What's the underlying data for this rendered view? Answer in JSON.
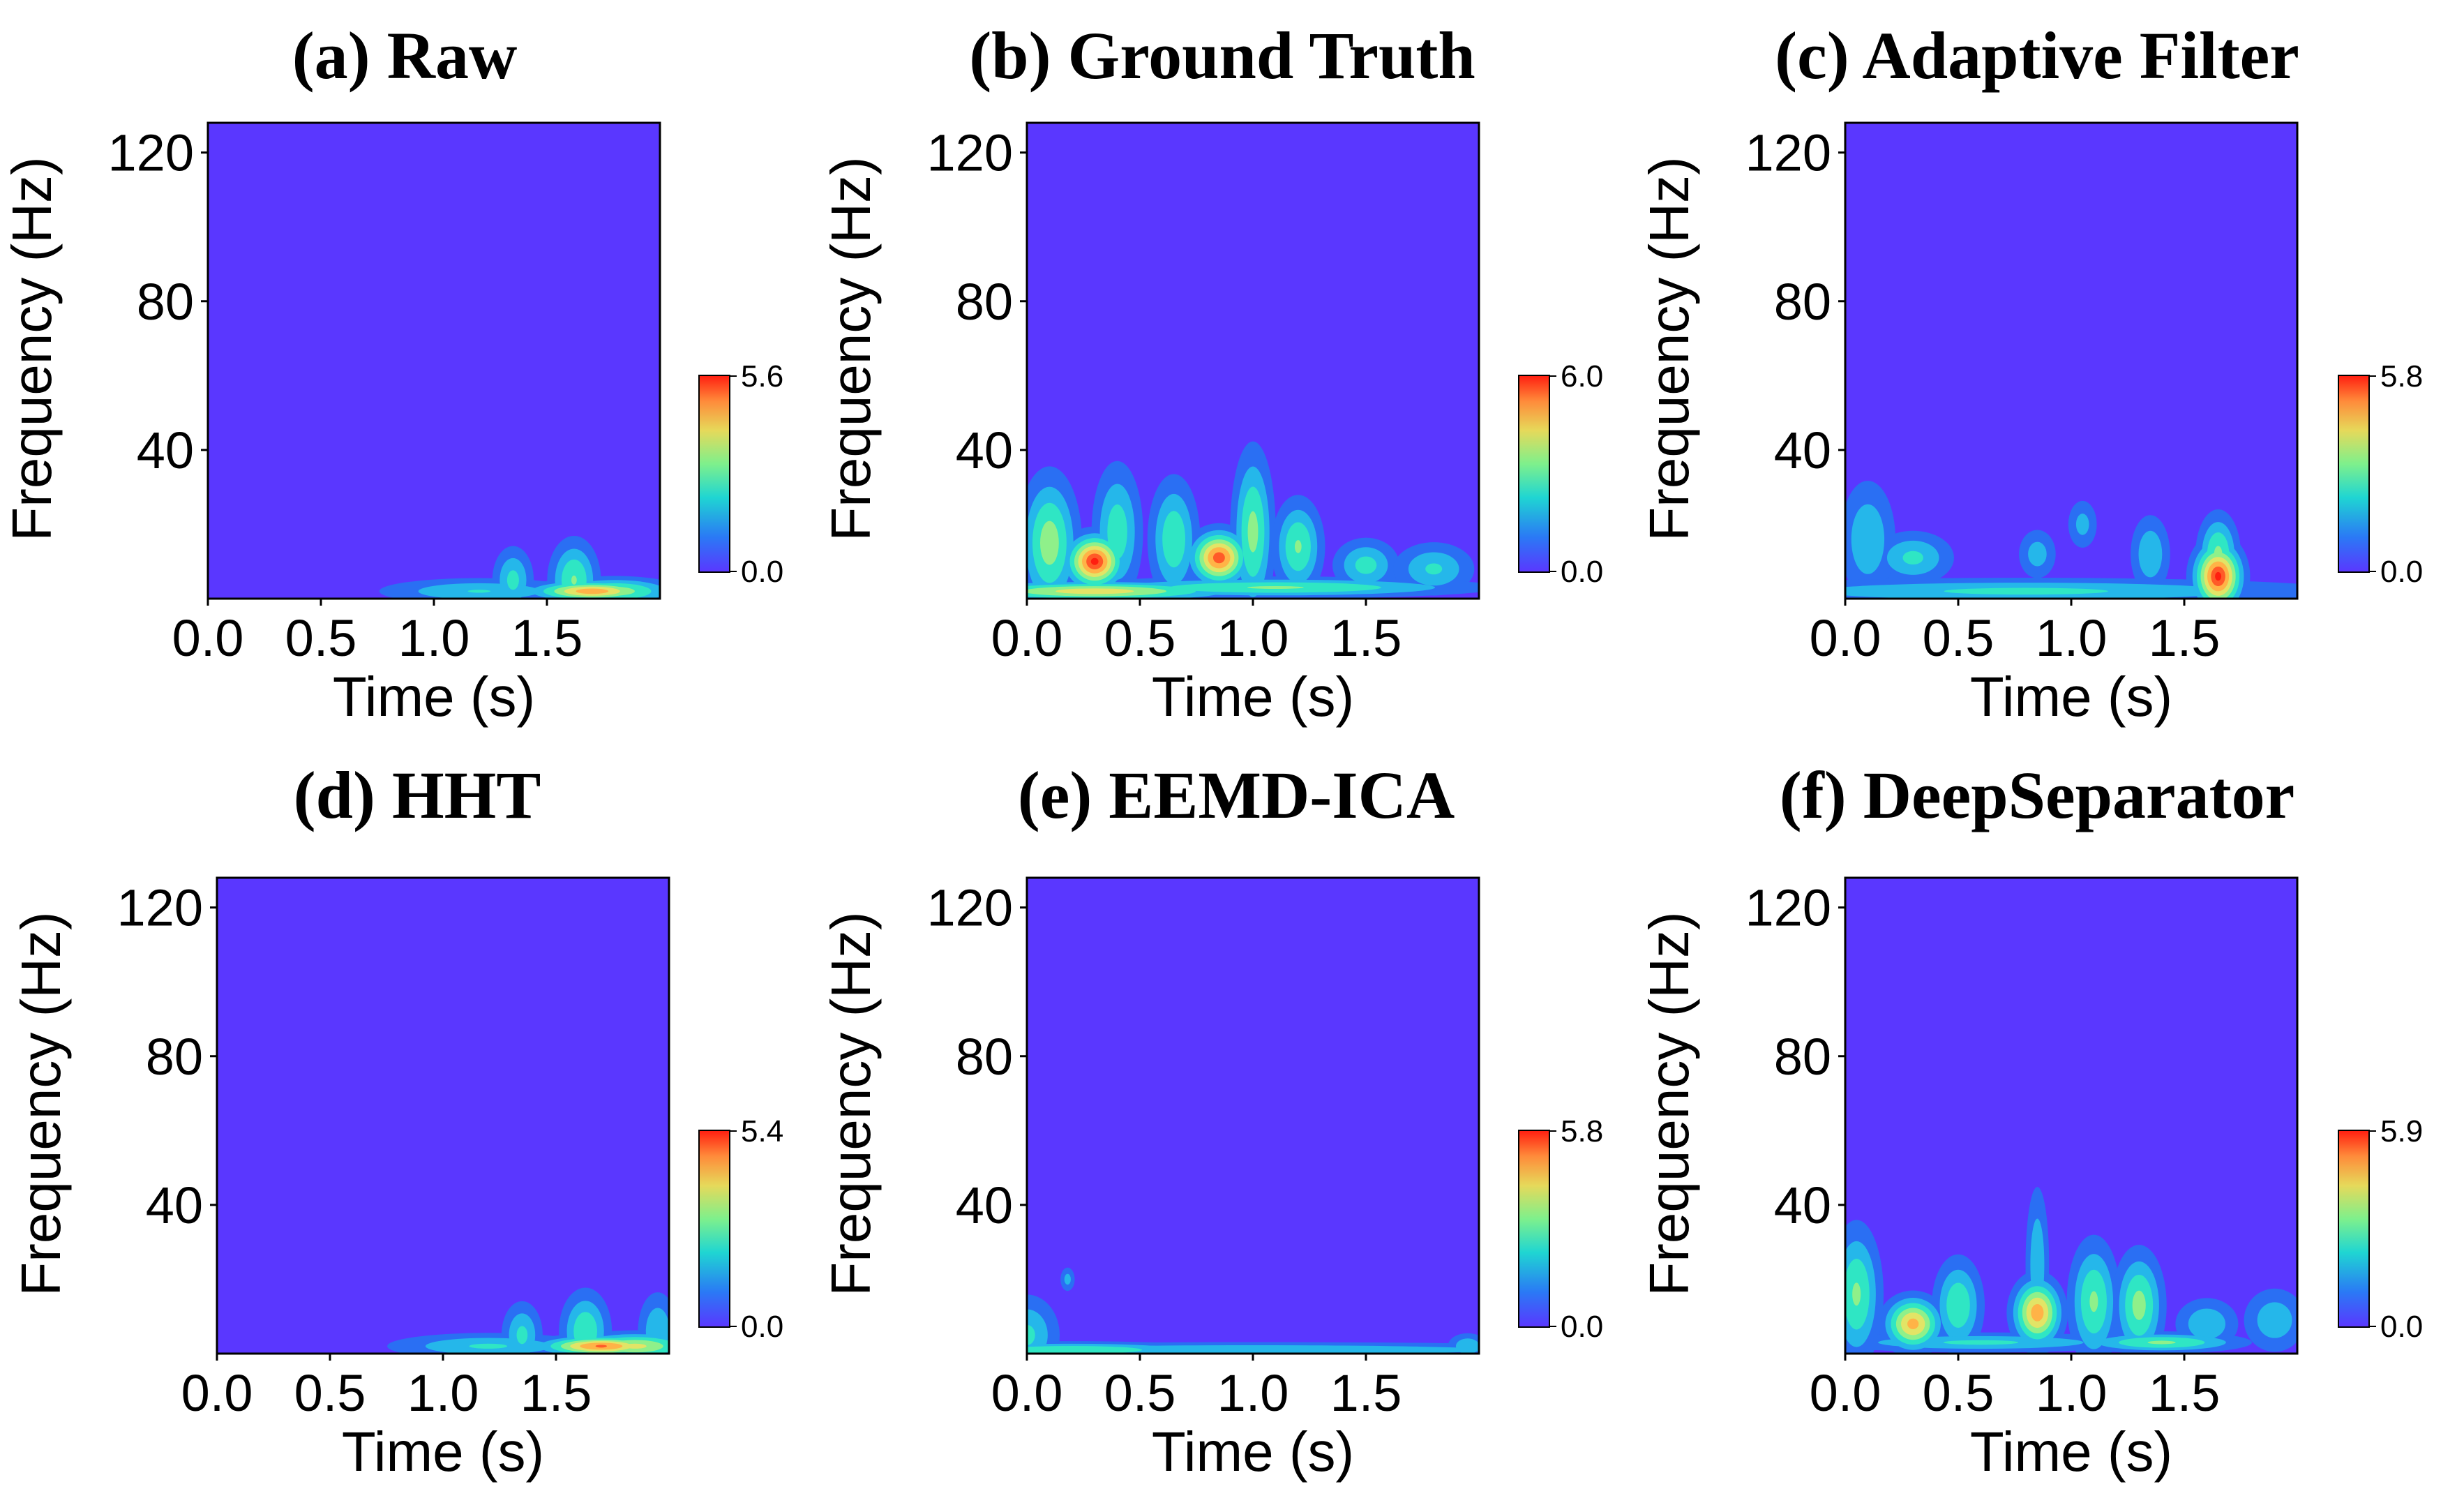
{
  "figure": {
    "description_label": "Time-frequency spectrograms comparison"
  },
  "chart_data": [
    {
      "type": "heatmap",
      "title": "(a) Raw",
      "xlabel": "Time (s)",
      "ylabel": "Frequency (Hz)",
      "xlim": [
        0.0,
        2.0
      ],
      "ylim": [
        0,
        128
      ],
      "xticks": [
        "0.0",
        "0.5",
        "1.0",
        "1.5"
      ],
      "yticks": [
        "120",
        "80",
        "40"
      ],
      "colorbar": {
        "min": 0.0,
        "max": 5.6,
        "min_label": "0.0",
        "max_label": "5.6"
      },
      "hotspots": [
        {
          "t": 1.35,
          "f": 5,
          "value": 1.8,
          "dt": 0.05,
          "df": 5
        },
        {
          "t": 1.62,
          "f": 5,
          "value": 2.4,
          "dt": 0.06,
          "df": 6
        },
        {
          "t": 1.7,
          "f": 2,
          "value": 4.4,
          "dt": 0.15,
          "df": 1.5
        },
        {
          "t": 1.8,
          "f": 2,
          "value": 2.8,
          "dt": 0.15,
          "df": 2
        },
        {
          "t": 1.2,
          "f": 2,
          "value": 1.6,
          "dt": 0.25,
          "df": 2
        }
      ]
    },
    {
      "type": "heatmap",
      "title": "(b) Ground Truth",
      "xlabel": "Time (s)",
      "ylabel": "Frequency (Hz)",
      "xlim": [
        0.0,
        2.0
      ],
      "ylim": [
        0,
        128
      ],
      "xticks": [
        "0.0",
        "0.5",
        "1.0",
        "1.5"
      ],
      "yticks": [
        "120",
        "80",
        "40"
      ],
      "colorbar": {
        "min": 0.0,
        "max": 6.0,
        "min_label": "0.0",
        "max_label": "6.0"
      },
      "hotspots": [
        {
          "t": 0.3,
          "f": 10,
          "value": 5.8,
          "dt": 0.07,
          "df": 4
        },
        {
          "t": 0.85,
          "f": 11,
          "value": 5.4,
          "dt": 0.07,
          "df": 4
        },
        {
          "t": 0.1,
          "f": 15,
          "value": 3.0,
          "dt": 0.07,
          "df": 10
        },
        {
          "t": 0.4,
          "f": 18,
          "value": 2.2,
          "dt": 0.06,
          "df": 10
        },
        {
          "t": 0.65,
          "f": 16,
          "value": 2.4,
          "dt": 0.06,
          "df": 9
        },
        {
          "t": 1.0,
          "f": 18,
          "value": 2.8,
          "dt": 0.05,
          "df": 12
        },
        {
          "t": 1.2,
          "f": 14,
          "value": 2.6,
          "dt": 0.06,
          "df": 7
        },
        {
          "t": 1.5,
          "f": 9,
          "value": 2.0,
          "dt": 0.08,
          "df": 4
        },
        {
          "t": 1.8,
          "f": 8,
          "value": 1.8,
          "dt": 0.1,
          "df": 4
        },
        {
          "t": 0.3,
          "f": 2,
          "value": 3.8,
          "dt": 0.35,
          "df": 1.5
        },
        {
          "t": 1.1,
          "f": 3,
          "value": 2.6,
          "dt": 0.5,
          "df": 1.5
        }
      ]
    },
    {
      "type": "heatmap",
      "title": "(c) Adaptive Filter",
      "xlabel": "Time (s)",
      "ylabel": "Frequency (Hz)",
      "xlim": [
        0.0,
        2.0
      ],
      "ylim": [
        0,
        128
      ],
      "xticks": [
        "0.0",
        "0.5",
        "1.0",
        "1.5"
      ],
      "yticks": [
        "120",
        "80",
        "40"
      ],
      "colorbar": {
        "min": 0.0,
        "max": 5.8,
        "min_label": "0.0",
        "max_label": "5.8"
      },
      "hotspots": [
        {
          "t": 1.65,
          "f": 6,
          "value": 5.6,
          "dt": 0.06,
          "df": 5
        },
        {
          "t": 1.65,
          "f": 12,
          "value": 2.6,
          "dt": 0.05,
          "df": 6
        },
        {
          "t": 0.3,
          "f": 11,
          "value": 1.8,
          "dt": 0.1,
          "df": 4
        },
        {
          "t": 0.1,
          "f": 16,
          "value": 1.6,
          "dt": 0.07,
          "df": 9
        },
        {
          "t": 0.85,
          "f": 12,
          "value": 1.3,
          "dt": 0.05,
          "df": 4
        },
        {
          "t": 1.05,
          "f": 20,
          "value": 1.2,
          "dt": 0.04,
          "df": 4
        },
        {
          "t": 1.35,
          "f": 12,
          "value": 1.6,
          "dt": 0.05,
          "df": 6
        },
        {
          "t": 0.8,
          "f": 2,
          "value": 1.8,
          "dt": 0.8,
          "df": 2
        }
      ]
    },
    {
      "type": "heatmap",
      "title": "(d) HHT",
      "xlabel": "Time (s)",
      "ylabel": "Frequency (Hz)",
      "xlim": [
        0.0,
        2.0
      ],
      "ylim": [
        0,
        128
      ],
      "xticks": [
        "0.0",
        "0.5",
        "1.0",
        "1.5"
      ],
      "yticks": [
        "120",
        "80",
        "40"
      ],
      "colorbar": {
        "min": 0.0,
        "max": 5.4,
        "min_label": "0.0",
        "max_label": "5.4"
      },
      "hotspots": [
        {
          "t": 1.35,
          "f": 5,
          "value": 1.7,
          "dt": 0.05,
          "df": 5
        },
        {
          "t": 1.63,
          "f": 6,
          "value": 2.2,
          "dt": 0.06,
          "df": 6
        },
        {
          "t": 1.95,
          "f": 6,
          "value": 1.5,
          "dt": 0.05,
          "df": 6
        },
        {
          "t": 1.7,
          "f": 2,
          "value": 4.6,
          "dt": 0.15,
          "df": 1.5
        },
        {
          "t": 1.85,
          "f": 2,
          "value": 3.2,
          "dt": 0.15,
          "df": 2
        },
        {
          "t": 1.2,
          "f": 2,
          "value": 1.6,
          "dt": 0.25,
          "df": 2
        }
      ]
    },
    {
      "type": "heatmap",
      "title": "(e) EEMD-ICA",
      "xlabel": "Time (s)",
      "ylabel": "Frequency (Hz)",
      "xlim": [
        0.0,
        2.0
      ],
      "ylim": [
        0,
        128
      ],
      "xticks": [
        "0.0",
        "0.5",
        "1.0",
        "1.5"
      ],
      "yticks": [
        "120",
        "80",
        "40"
      ],
      "colorbar": {
        "min": 0.0,
        "max": 5.8,
        "min_label": "0.0",
        "max_label": "5.8"
      },
      "hotspots": [
        {
          "t": 0.0,
          "f": 5,
          "value": 1.8,
          "dt": 0.08,
          "df": 6
        },
        {
          "t": 0.18,
          "f": 20,
          "value": 1.2,
          "dt": 0.02,
          "df": 2
        },
        {
          "t": 0.2,
          "f": 1,
          "value": 2.4,
          "dt": 0.35,
          "df": 1.2
        },
        {
          "t": 1.0,
          "f": 1,
          "value": 1.6,
          "dt": 1.0,
          "df": 1.2
        },
        {
          "t": 1.95,
          "f": 2,
          "value": 1.6,
          "dt": 0.05,
          "df": 2
        }
      ]
    },
    {
      "type": "heatmap",
      "title": "(f) DeepSeparator",
      "xlabel": "Time (s)",
      "ylabel": "Frequency (Hz)",
      "xlim": [
        0.0,
        2.0
      ],
      "ylim": [
        0,
        128
      ],
      "xticks": [
        "0.0",
        "0.5",
        "1.0",
        "1.5"
      ],
      "yticks": [
        "120",
        "80",
        "40"
      ],
      "colorbar": {
        "min": 0.0,
        "max": 5.9,
        "min_label": "0.0",
        "max_label": "5.9"
      },
      "hotspots": [
        {
          "t": 0.3,
          "f": 8,
          "value": 4.4,
          "dt": 0.07,
          "df": 4
        },
        {
          "t": 0.85,
          "f": 11,
          "value": 4.6,
          "dt": 0.06,
          "df": 5
        },
        {
          "t": 0.85,
          "f": 24,
          "value": 1.6,
          "dt": 0.03,
          "df": 12
        },
        {
          "t": 0.05,
          "f": 16,
          "value": 2.6,
          "dt": 0.06,
          "df": 10
        },
        {
          "t": 0.5,
          "f": 13,
          "value": 2.4,
          "dt": 0.06,
          "df": 7
        },
        {
          "t": 1.1,
          "f": 14,
          "value": 2.6,
          "dt": 0.06,
          "df": 9
        },
        {
          "t": 1.3,
          "f": 13,
          "value": 2.8,
          "dt": 0.06,
          "df": 8
        },
        {
          "t": 1.6,
          "f": 8,
          "value": 1.6,
          "dt": 0.08,
          "df": 4
        },
        {
          "t": 1.9,
          "f": 9,
          "value": 1.5,
          "dt": 0.08,
          "df": 5
        },
        {
          "t": 1.4,
          "f": 3,
          "value": 2.6,
          "dt": 0.2,
          "df": 1.5
        },
        {
          "t": 0.6,
          "f": 3,
          "value": 1.8,
          "dt": 0.4,
          "df": 1.5
        }
      ]
    }
  ]
}
